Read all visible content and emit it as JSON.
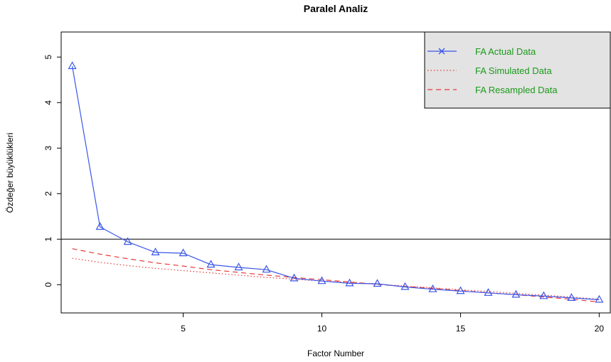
{
  "chart_data": {
    "type": "line",
    "title": "Paralel Analiz",
    "xlabel": "Factor Number",
    "ylabel": "Özdeğer büyüklükleri",
    "xlim": [
      0.6,
      20.4
    ],
    "ylim": [
      -0.62,
      5.55
    ],
    "xticks": [
      5,
      10,
      15,
      20
    ],
    "yticks": [
      0,
      1,
      2,
      3,
      4,
      5
    ],
    "reference_line_y": 1,
    "legend_position": "top-right",
    "x": [
      1,
      2,
      3,
      4,
      5,
      6,
      7,
      8,
      9,
      10,
      11,
      12,
      13,
      14,
      15,
      16,
      17,
      18,
      19,
      20
    ],
    "series": [
      {
        "name": "FA  Actual Data",
        "style": "solid-triangles",
        "color": "#3a56e8",
        "values": [
          4.8,
          1.27,
          0.94,
          0.71,
          0.69,
          0.44,
          0.38,
          0.33,
          0.14,
          0.08,
          0.03,
          0.02,
          -0.05,
          -0.1,
          -0.14,
          -0.18,
          -0.22,
          -0.25,
          -0.29,
          -0.33
        ]
      },
      {
        "name": "FA  Simulated Data",
        "style": "dotted",
        "color": "#e83a3a",
        "values": [
          0.58,
          0.49,
          0.42,
          0.36,
          0.31,
          0.26,
          0.21,
          0.16,
          0.12,
          0.08,
          0.05,
          0.01,
          -0.03,
          -0.07,
          -0.11,
          -0.15,
          -0.19,
          -0.23,
          -0.27,
          -0.32
        ]
      },
      {
        "name": "FA  Resampled Data",
        "style": "dashed",
        "color": "#e83a3a",
        "values": [
          0.79,
          0.67,
          0.57,
          0.48,
          0.41,
          0.33,
          0.27,
          0.21,
          0.16,
          0.11,
          0.06,
          0.01,
          -0.04,
          -0.08,
          -0.13,
          -0.18,
          -0.22,
          -0.27,
          -0.32,
          -0.38
        ]
      }
    ]
  }
}
